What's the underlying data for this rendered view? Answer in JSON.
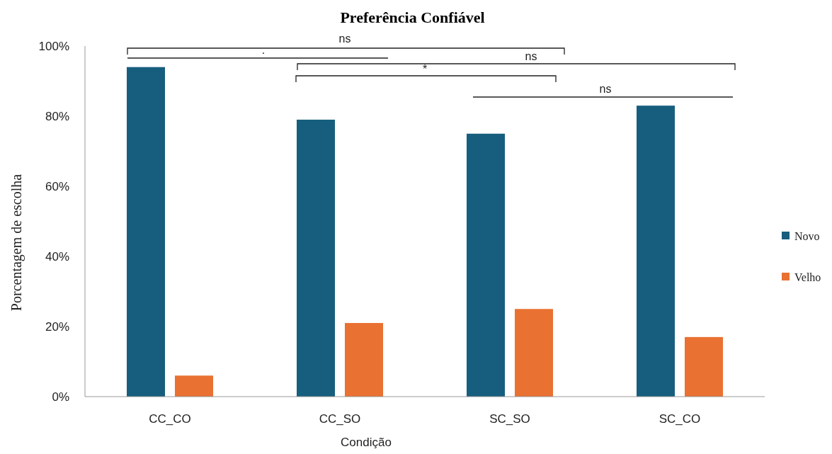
{
  "chart_data": {
    "type": "bar",
    "title": "Preferência Confiável",
    "xlabel": "Condição",
    "ylabel": "Porcentagem de escolha",
    "categories": [
      "CC_CO",
      "CC_SO",
      "SC_SO",
      "SC_CO"
    ],
    "series": [
      {
        "name": "Novo",
        "color": "#175e7e",
        "values": [
          94,
          79,
          75,
          83
        ]
      },
      {
        "name": "Velho",
        "color": "#e97132",
        "values": [
          6,
          21,
          25,
          17
        ]
      }
    ],
    "ylim": [
      0,
      100
    ],
    "yticks": [
      {
        "value": 0,
        "label": "0%"
      },
      {
        "value": 20,
        "label": "20%"
      },
      {
        "value": 40,
        "label": "40%"
      },
      {
        "value": 60,
        "label": "60%"
      },
      {
        "value": 80,
        "label": "80%"
      },
      {
        "value": 100,
        "label": "100%"
      }
    ],
    "grid": false,
    "legend": "right",
    "annotations": [
      "ns",
      "·",
      "ns",
      "*",
      "ns"
    ]
  }
}
